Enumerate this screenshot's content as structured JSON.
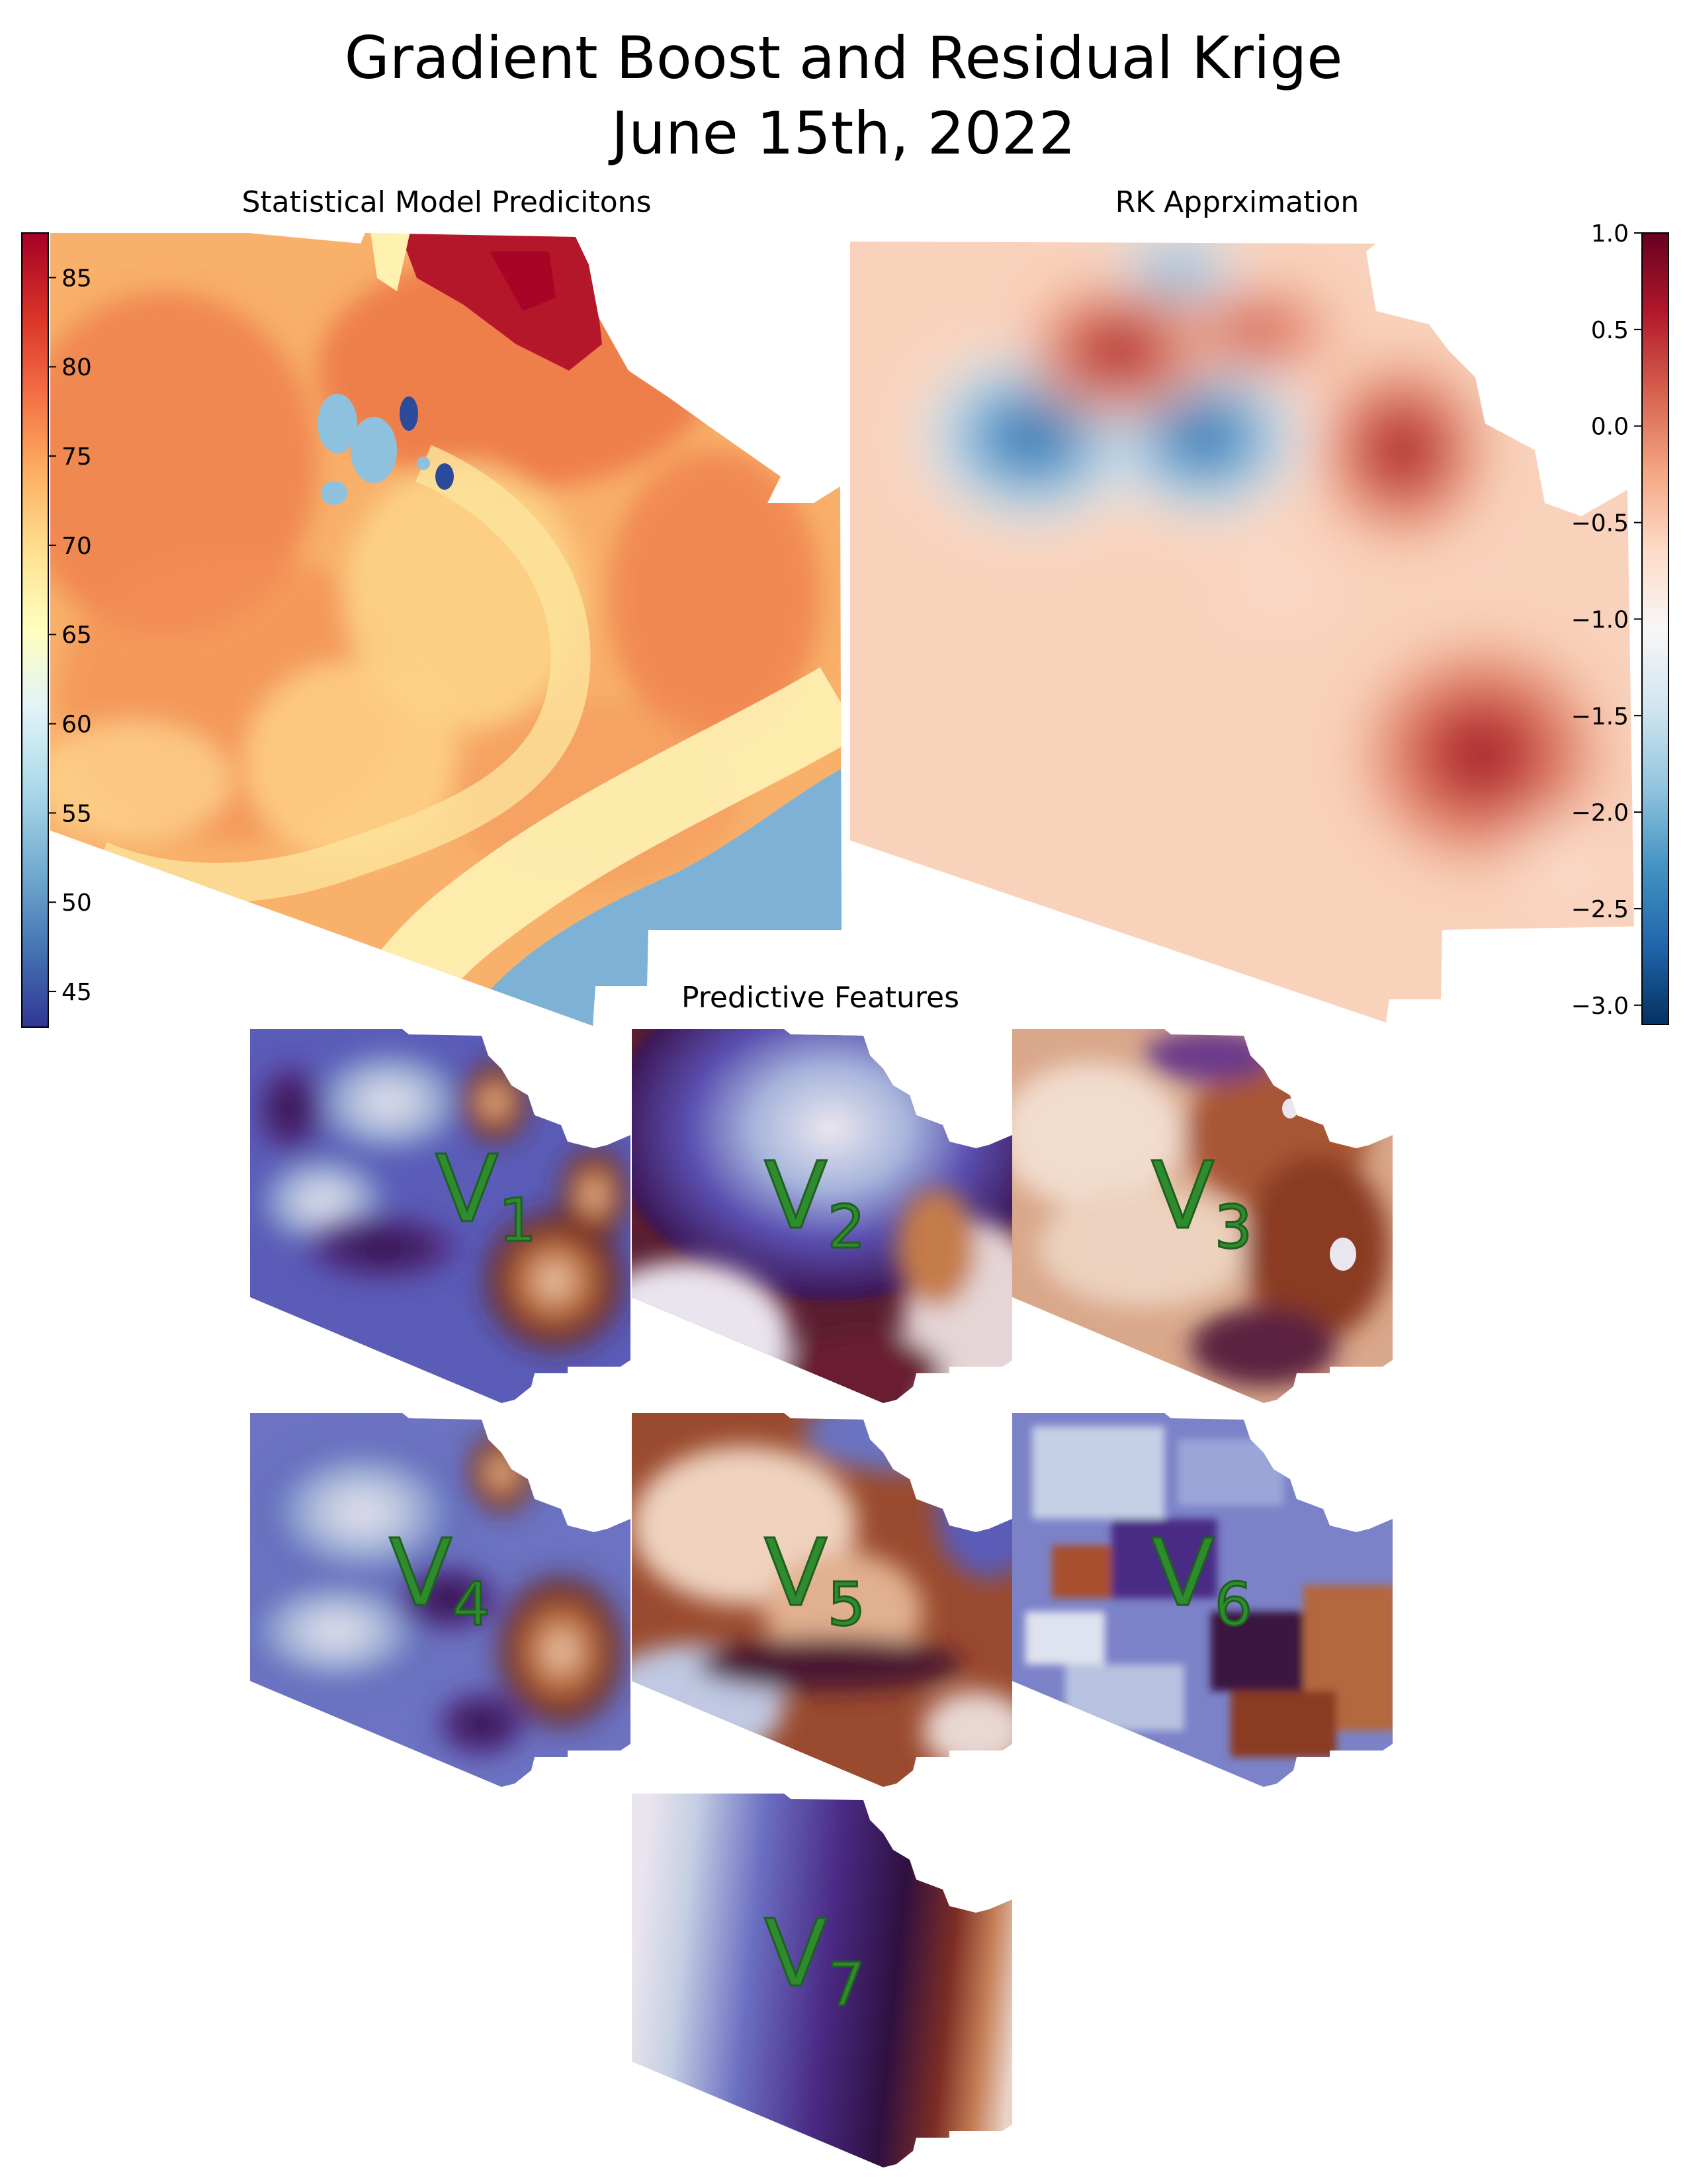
{
  "figure": {
    "title_line1": "Gradient Boost and Residual Krige",
    "title_line2": "June 15th, 2022"
  },
  "left_panel": {
    "title": "Statistical Model Predicitons",
    "colorbar": {
      "ticks": [
        "45",
        "50",
        "55",
        "60",
        "65",
        "70",
        "75",
        "80",
        "85"
      ],
      "min": 43,
      "max": 87.5,
      "colormap": "RdYlBu_r",
      "colors": [
        "#313695",
        "#4575b4",
        "#74add1",
        "#abd9e9",
        "#e0f3f8",
        "#ffffbf",
        "#fee090",
        "#fdae61",
        "#f46d43",
        "#d73027",
        "#a50026"
      ]
    }
  },
  "right_panel": {
    "title": "RK Apprximation",
    "colorbar": {
      "ticks": [
        "1.0",
        "0.5",
        "0.0",
        "−0.5",
        "−1.0",
        "−1.5",
        "−2.0",
        "−2.5",
        "−3.0"
      ],
      "min": -3.1,
      "max": 1.0,
      "colormap": "RdBu_r",
      "colors": [
        "#053061",
        "#2166ac",
        "#4393c3",
        "#92c5de",
        "#d1e5f0",
        "#f7f7f7",
        "#fddbc7",
        "#f4a582",
        "#d6604d",
        "#b2182b",
        "#67001f"
      ]
    }
  },
  "features": {
    "title": "Predictive Features",
    "colormap": "twilight_shifted",
    "labels": [
      {
        "letter": "V",
        "sub": "1"
      },
      {
        "letter": "V",
        "sub": "2"
      },
      {
        "letter": "V",
        "sub": "3"
      },
      {
        "letter": "V",
        "sub": "4"
      },
      {
        "letter": "V",
        "sub": "5"
      },
      {
        "letter": "V",
        "sub": "6"
      },
      {
        "letter": "V",
        "sub": "7"
      }
    ],
    "label_color": "#2e8b2e"
  }
}
